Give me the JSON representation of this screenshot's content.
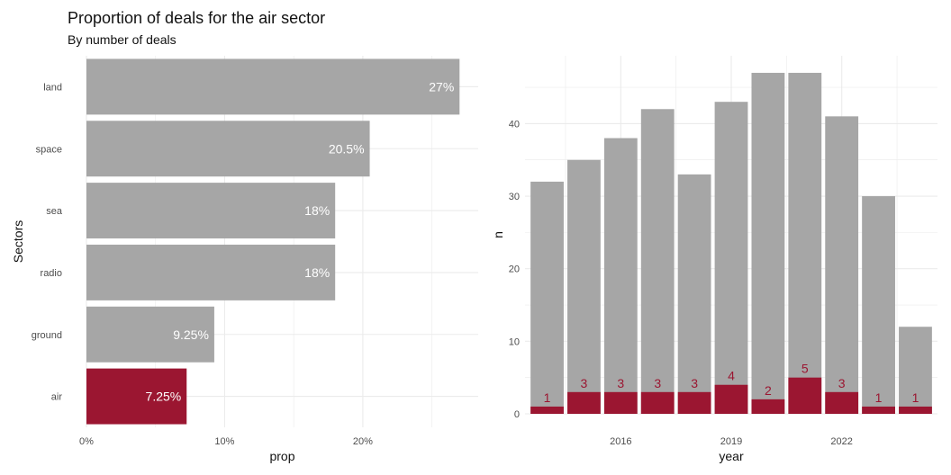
{
  "title": "Proportion of deals for the air sector",
  "subtitle": "By number of deals",
  "colors": {
    "grey": "#a6a6a6",
    "highlight": "#9b1631",
    "grid": "#ebebeb"
  },
  "chart_data": [
    {
      "type": "bar",
      "orientation": "horizontal",
      "categories": [
        "land",
        "space",
        "sea",
        "radio",
        "ground",
        "air"
      ],
      "values": [
        27,
        20.5,
        18,
        18,
        9.25,
        7.25
      ],
      "labels": [
        "27%",
        "20.5%",
        "18%",
        "18%",
        "9.25%",
        "7.25%"
      ],
      "highlight": "air",
      "xlabel": "prop",
      "ylabel": "Sectors",
      "xticks": [
        0,
        10,
        20
      ],
      "xtick_labels": [
        "0%",
        "10%",
        "20%"
      ],
      "xlim": [
        0,
        28.35
      ],
      "grid": true
    },
    {
      "type": "bar",
      "stacked_overlay": true,
      "x": [
        2014,
        2015,
        2016,
        2017,
        2018,
        2019,
        2020,
        2021,
        2022,
        2023,
        2024
      ],
      "series": [
        {
          "values": [
            32,
            35,
            38,
            42,
            33,
            43,
            47,
            47,
            41,
            30,
            12
          ]
        },
        {
          "values": [
            1,
            3,
            3,
            3,
            3,
            4,
            2,
            5,
            3,
            1,
            1
          ]
        }
      ],
      "count_labels": [
        "1",
        "3",
        "3",
        "3",
        "3",
        "4",
        "2",
        "5",
        "3",
        "1",
        "1"
      ],
      "xlabel": "year",
      "ylabel": "n",
      "xticks": [
        2016,
        2019,
        2022
      ],
      "xtick_labels": [
        "2016",
        "2019",
        "2022"
      ],
      "yticks": [
        0,
        10,
        20,
        30,
        40
      ],
      "ytick_labels": [
        "0",
        "10",
        "20",
        "30",
        "40"
      ],
      "ylim": [
        0,
        49.35
      ],
      "grid": true
    }
  ]
}
